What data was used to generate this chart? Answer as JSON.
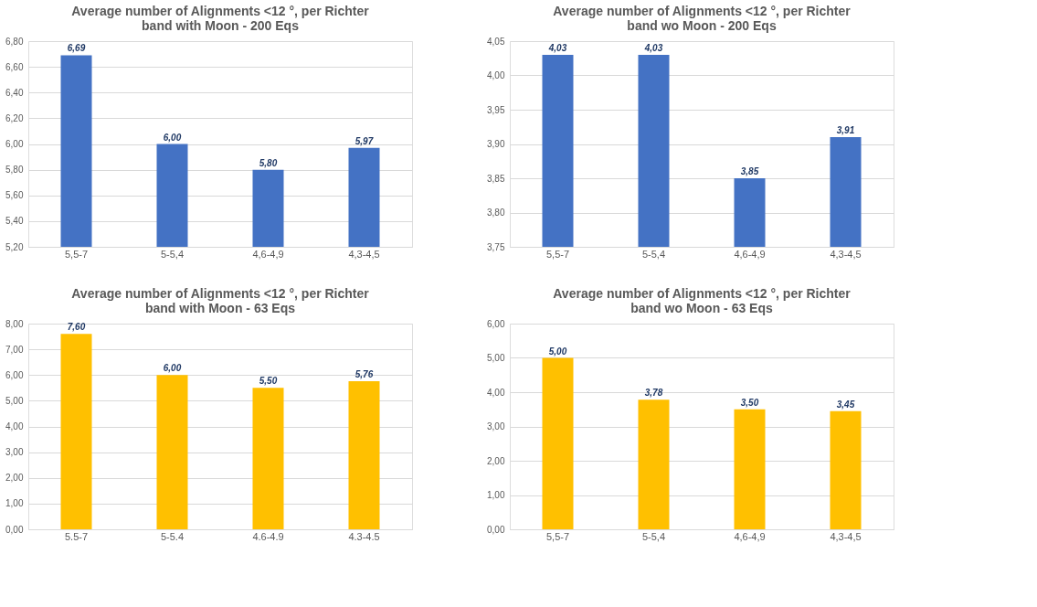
{
  "chart_data": [
    {
      "type": "bar",
      "title": "Average number of Alignments <12 °, per Richter\nband with Moon - 200 Eqs",
      "categories": [
        "5,5-7",
        "5-5,4",
        "4,6-4,9",
        "4,3-4,5"
      ],
      "values": [
        6.69,
        6.0,
        5.8,
        5.97
      ],
      "value_labels": [
        "6,69",
        "6,00",
        "5,80",
        "5,97"
      ],
      "color": "#4472c4",
      "ylim": [
        5.2,
        6.8
      ],
      "yticks": [
        {
          "value": 5.2,
          "label": "5,20"
        },
        {
          "value": 5.4,
          "label": "5,40"
        },
        {
          "value": 5.6,
          "label": "5,60"
        },
        {
          "value": 5.8,
          "label": "5,80"
        },
        {
          "value": 6.0,
          "label": "6,00"
        },
        {
          "value": 6.2,
          "label": "6,20"
        },
        {
          "value": 6.4,
          "label": "6,40"
        },
        {
          "value": 6.6,
          "label": "6,60"
        },
        {
          "value": 6.8,
          "label": "6,80"
        }
      ],
      "grid": "y",
      "legend": false
    },
    {
      "type": "bar",
      "title": "Average number of Alignments <12 °, per Richter\nband wo Moon - 200 Eqs",
      "categories": [
        "5,5-7",
        "5-5,4",
        "4,6-4,9",
        "4,3-4,5"
      ],
      "values": [
        4.03,
        4.03,
        3.85,
        3.91
      ],
      "value_labels": [
        "4,03",
        "4,03",
        "3,85",
        "3,91"
      ],
      "color": "#4472c4",
      "ylim": [
        3.75,
        4.05
      ],
      "yticks": [
        {
          "value": 3.75,
          "label": "3,75"
        },
        {
          "value": 3.8,
          "label": "3,80"
        },
        {
          "value": 3.85,
          "label": "3,85"
        },
        {
          "value": 3.9,
          "label": "3,90"
        },
        {
          "value": 3.95,
          "label": "3,95"
        },
        {
          "value": 4.0,
          "label": "4,00"
        },
        {
          "value": 4.05,
          "label": "4,05"
        }
      ],
      "grid": "y",
      "legend": false
    },
    {
      "type": "bar",
      "title": "Average number of Alignments <12 °, per Richter\nband with Moon - 63 Eqs",
      "categories": [
        "5.5-7",
        "5-5.4",
        "4.6-4.9",
        "4.3-4.5"
      ],
      "values": [
        7.6,
        6.0,
        5.5,
        5.76
      ],
      "value_labels": [
        "7,60",
        "6,00",
        "5,50",
        "5,76"
      ],
      "color": "#ffc000",
      "ylim": [
        0,
        8
      ],
      "yticks": [
        {
          "value": 0,
          "label": "0,00"
        },
        {
          "value": 1,
          "label": "1,00"
        },
        {
          "value": 2,
          "label": "2,00"
        },
        {
          "value": 3,
          "label": "3,00"
        },
        {
          "value": 4,
          "label": "4,00"
        },
        {
          "value": 5,
          "label": "5,00"
        },
        {
          "value": 6,
          "label": "6,00"
        },
        {
          "value": 7,
          "label": "7,00"
        },
        {
          "value": 8,
          "label": "8,00"
        }
      ],
      "grid": "y",
      "legend": false
    },
    {
      "type": "bar",
      "title": "Average number of Alignments <12 °, per Richter\nband wo Moon - 63 Eqs",
      "categories": [
        "5,5-7",
        "5-5,4",
        "4,6-4,9",
        "4,3-4,5"
      ],
      "values": [
        5.0,
        3.78,
        3.5,
        3.45
      ],
      "value_labels": [
        "5,00",
        "3,78",
        "3,50",
        "3,45"
      ],
      "color": "#ffc000",
      "ylim": [
        0,
        6
      ],
      "yticks": [
        {
          "value": 0,
          "label": "0,00"
        },
        {
          "value": 1,
          "label": "1,00"
        },
        {
          "value": 2,
          "label": "2,00"
        },
        {
          "value": 3,
          "label": "3,00"
        },
        {
          "value": 4,
          "label": "4,00"
        },
        {
          "value": 5,
          "label": "5,00"
        },
        {
          "value": 6,
          "label": "6,00"
        }
      ],
      "grid": "y",
      "legend": false
    }
  ]
}
